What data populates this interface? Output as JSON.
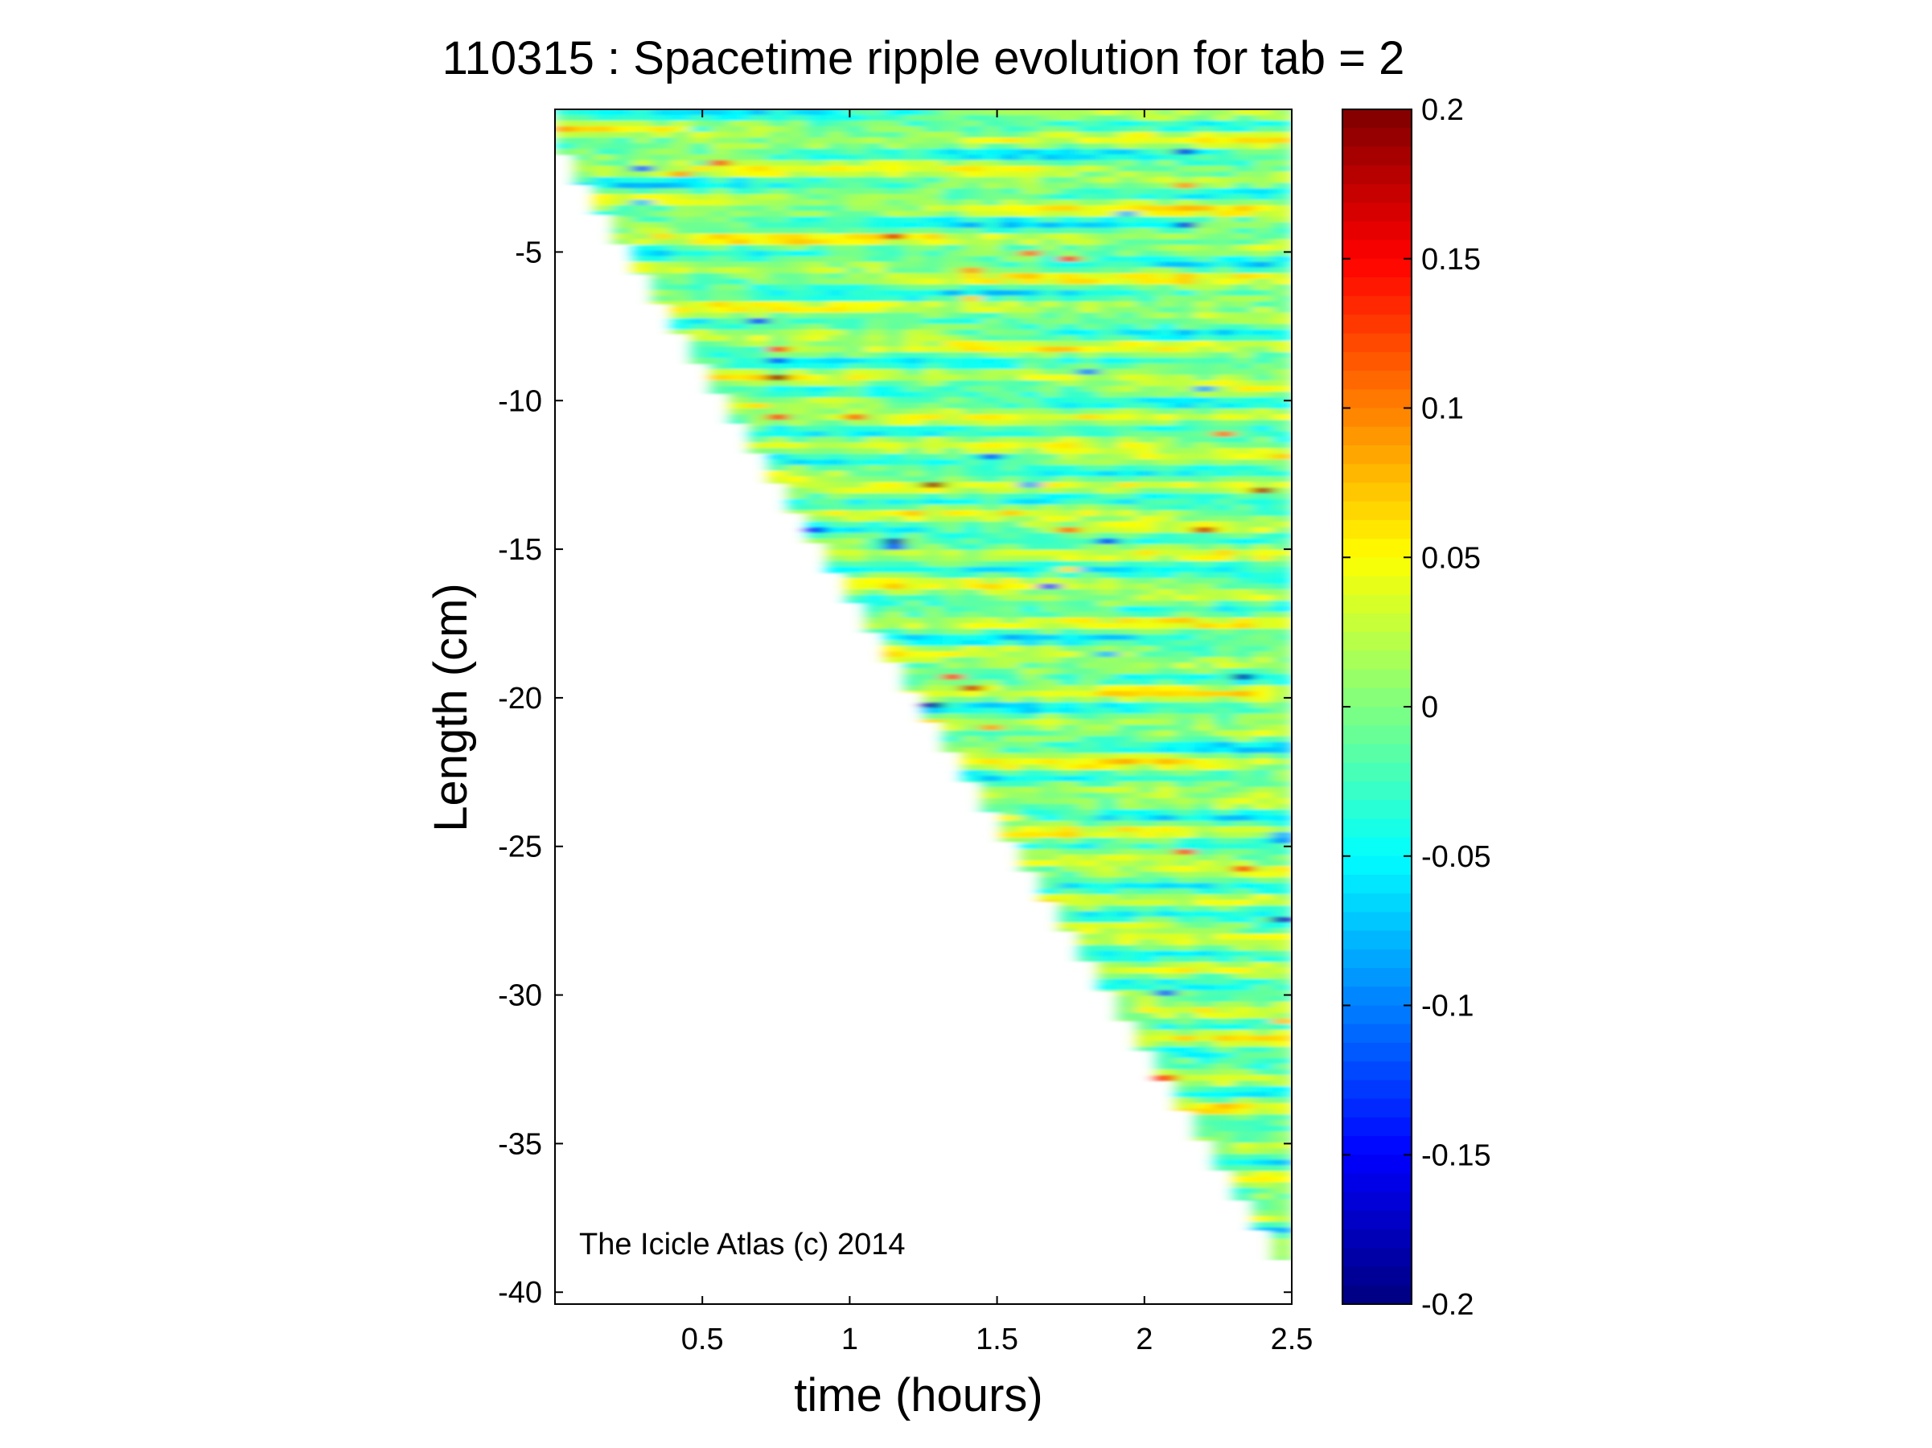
{
  "chart_data": {
    "type": "heatmap",
    "title": "110315 : Spacetime ripple evolution for tab = 2",
    "xlabel": "time (hours)",
    "ylabel": "Length (cm)",
    "xlim": [
      0,
      2.5
    ],
    "ylim": [
      -40.4,
      -0.2
    ],
    "xticks": [
      0.5,
      1,
      1.5,
      2,
      2.5
    ],
    "xtick_labels": [
      "0.5",
      "1",
      "1.5",
      "2",
      "2.5"
    ],
    "yticks": [
      -5,
      -10,
      -15,
      -20,
      -25,
      -30,
      -35,
      -40
    ],
    "ytick_labels": [
      "-5",
      "-10",
      "-15",
      "-20",
      "-25",
      "-30",
      "-35",
      "-40"
    ],
    "colorbar": {
      "colormap": "jet",
      "range": [
        -0.2,
        0.2
      ],
      "ticks": [
        0.2,
        0.15,
        0.1,
        0.05,
        0,
        -0.05,
        -0.1,
        -0.15,
        -0.2
      ],
      "tick_labels": [
        "0.2",
        "0.15",
        "0.1",
        "0.05",
        "0",
        "-0.05",
        "-0.1",
        "-0.15",
        "-0.2"
      ]
    },
    "growth_front": {
      "description_time_hours": [
        0.0,
        2.5
      ],
      "length_cm": [
        -0.7,
        -38.9
      ]
    },
    "annotation": "The Icicle Atlas (c) 2014"
  }
}
